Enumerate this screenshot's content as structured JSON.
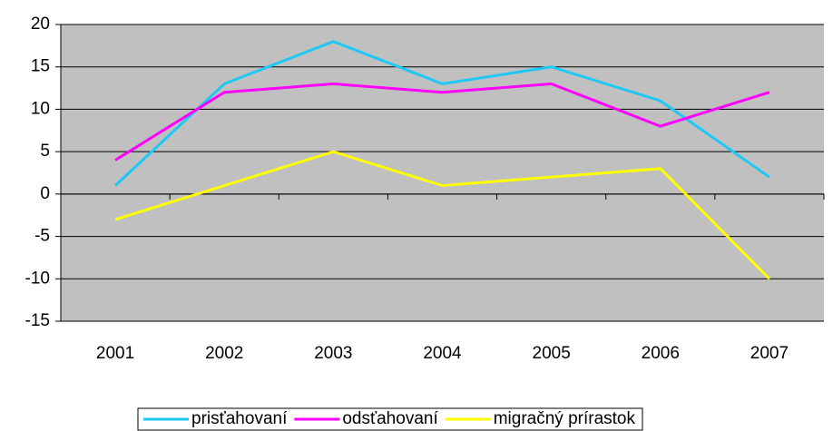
{
  "chart_data": {
    "type": "line",
    "categories": [
      "2001",
      "2002",
      "2003",
      "2004",
      "2005",
      "2006",
      "2007"
    ],
    "series": [
      {
        "name": "prisťahovaní",
        "color": "#1ec8f5",
        "values": [
          1,
          13,
          18,
          13,
          15,
          11,
          2
        ]
      },
      {
        "name": "odsťahovaní",
        "color": "#ff00ff",
        "values": [
          4,
          12,
          13,
          12,
          13,
          8,
          12
        ]
      },
      {
        "name": "migračný prírastok",
        "color": "#ffff00",
        "values": [
          -3,
          1,
          5,
          1,
          2,
          3,
          -10
        ]
      }
    ],
    "ylim": [
      -15,
      20
    ],
    "yticks": [
      -15,
      -10,
      -5,
      0,
      5,
      10,
      15,
      20
    ],
    "grid": true,
    "legend": "bottom",
    "background": "#c0c0c0"
  }
}
